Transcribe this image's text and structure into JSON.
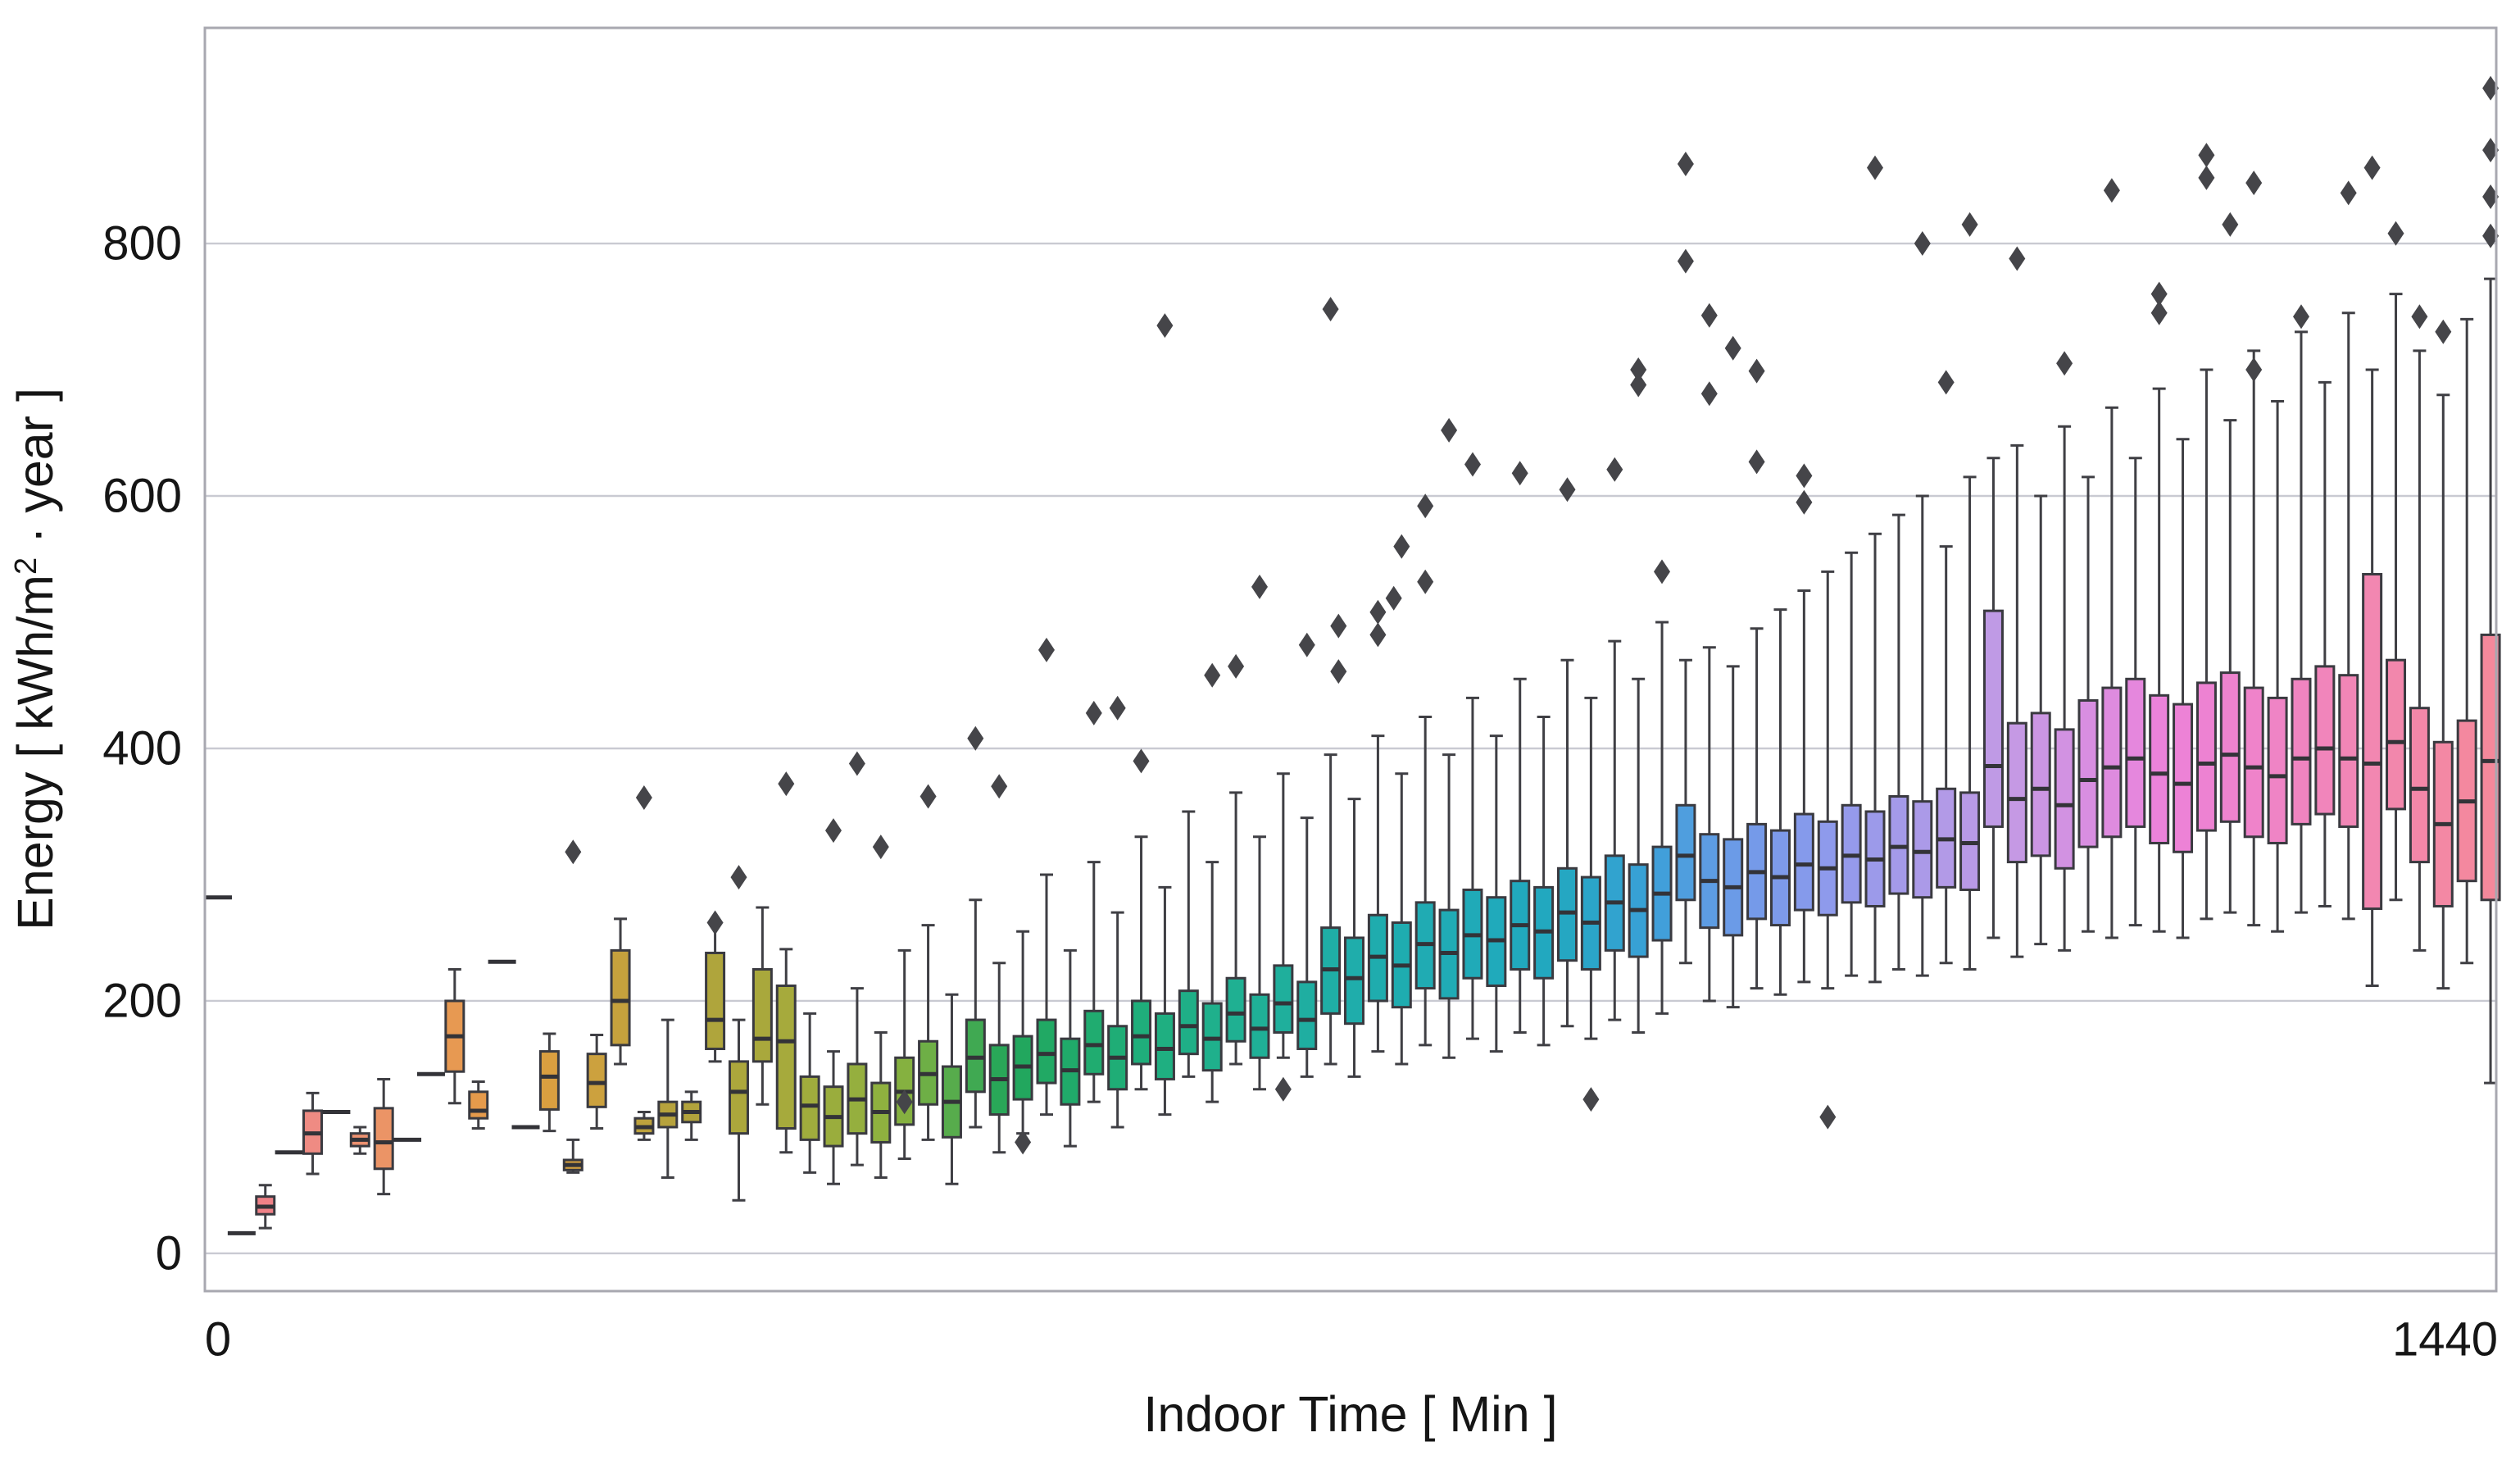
{
  "figure": {
    "background": "#ffffff",
    "x_axis": {
      "label": "Indoor Time [ Min ]",
      "tick_labels": [
        "0",
        "1440"
      ],
      "tick_values": [
        0,
        1440
      ]
    },
    "y_axis": {
      "label_text": "Energy [ kWh/m² · year ]",
      "label_prefix": "Energy [ kWh/m",
      "label_sup": "2",
      "label_suffix": " · year ]",
      "tick_values": [
        0,
        200,
        400,
        600,
        800
      ]
    }
  },
  "chart_data": {
    "type": "boxplot",
    "orientation": "vertical",
    "title": "",
    "xlabel": "Indoor Time [ Min ]",
    "ylabel": "Energy [ kWh/m² · year ]",
    "x_unit": "minutes",
    "bin_interval_min": 15,
    "xlim": [
      -8.3,
      1443.6
    ],
    "ylim": [
      -29.9,
      970.8
    ],
    "x_ticks": [
      0,
      1440
    ],
    "y_ticks": [
      0,
      200,
      400,
      600,
      800
    ],
    "grid": "horizontal-only",
    "colors": {
      "edge": "#3a3a40",
      "median": "#333338",
      "whisker": "#3f3f44",
      "outlier": "#454549",
      "grid": "#c9cad2",
      "spine": "#a8a8b0",
      "background": "#ffffff",
      "text": "#151515"
    },
    "palette_stops": [
      [
        0.0,
        "#f0788a"
      ],
      [
        0.04,
        "#ef8a84"
      ],
      [
        0.08,
        "#ea9660"
      ],
      [
        0.115,
        "#e59a4b"
      ],
      [
        0.15,
        "#d8a03f"
      ],
      [
        0.2,
        "#b4a23c"
      ],
      [
        0.25,
        "#a6aa3c"
      ],
      [
        0.3,
        "#8ab23f"
      ],
      [
        0.347,
        "#22a65a"
      ],
      [
        0.4,
        "#1fae78"
      ],
      [
        0.45,
        "#1fb093"
      ],
      [
        0.5,
        "#1fadab"
      ],
      [
        0.56,
        "#20aaba"
      ],
      [
        0.59,
        "#23a8c0"
      ],
      [
        0.63,
        "#3aa0d8"
      ],
      [
        0.67,
        "#6f9ae8"
      ],
      [
        0.71,
        "#8f9aec"
      ],
      [
        0.75,
        "#ab9ae8"
      ],
      [
        0.79,
        "#c49ae4"
      ],
      [
        0.83,
        "#dc8ce0"
      ],
      [
        0.855,
        "#ec82da"
      ],
      [
        0.9,
        "#ef83c8"
      ],
      [
        0.95,
        "#f287b0"
      ],
      [
        1.0,
        "#f4889b"
      ]
    ],
    "box_schema": [
      "t_min",
      "whisker_low",
      "q1",
      "median",
      "q3",
      "whisker_high"
    ],
    "boxes": [
      [
        0,
        282,
        282,
        282,
        282,
        282
      ],
      [
        15,
        16,
        16,
        16,
        16,
        16
      ],
      [
        30,
        20,
        31,
        37,
        45,
        54
      ],
      [
        45,
        80,
        80,
        80,
        80,
        80
      ],
      [
        60,
        63,
        79,
        95,
        113,
        127
      ],
      [
        75,
        112,
        112,
        112,
        112,
        112
      ],
      [
        90,
        79,
        85,
        90,
        95,
        100
      ],
      [
        105,
        47,
        67,
        88,
        115,
        138
      ],
      [
        120,
        90,
        90,
        90,
        90,
        90
      ],
      [
        135,
        142,
        142,
        142,
        142,
        142
      ],
      [
        150,
        119,
        144,
        172,
        200,
        225
      ],
      [
        165,
        99,
        107,
        113,
        128,
        136
      ],
      [
        180,
        231,
        231,
        231,
        231,
        231
      ],
      [
        195,
        100,
        100,
        100,
        100,
        100
      ],
      [
        210,
        97,
        114,
        140,
        160,
        174
      ],
      [
        225,
        64,
        66,
        70,
        74,
        90
      ],
      [
        240,
        99,
        116,
        135,
        158,
        173
      ],
      [
        255,
        150,
        165,
        200,
        240,
        265
      ],
      [
        270,
        90,
        95,
        100,
        107,
        112
      ],
      [
        285,
        60,
        100,
        110,
        120,
        185
      ],
      [
        300,
        90,
        104,
        112,
        120,
        128
      ],
      [
        315,
        152,
        162,
        185,
        238,
        262
      ],
      [
        330,
        42,
        95,
        128,
        152,
        185
      ],
      [
        345,
        118,
        152,
        170,
        225,
        274
      ],
      [
        360,
        80,
        99,
        168,
        212,
        241
      ],
      [
        375,
        64,
        90,
        117,
        140,
        190
      ],
      [
        390,
        55,
        85,
        108,
        132,
        160
      ],
      [
        405,
        70,
        95,
        122,
        150,
        210
      ],
      [
        420,
        60,
        88,
        112,
        135,
        175
      ],
      [
        435,
        75,
        102,
        128,
        155,
        240
      ],
      [
        450,
        90,
        118,
        142,
        168,
        260
      ],
      [
        465,
        55,
        92,
        120,
        148,
        205
      ],
      [
        480,
        100,
        128,
        155,
        185,
        280
      ],
      [
        495,
        80,
        110,
        138,
        165,
        230
      ],
      [
        510,
        95,
        122,
        148,
        172,
        255
      ],
      [
        525,
        110,
        135,
        158,
        185,
        300
      ],
      [
        540,
        85,
        118,
        145,
        170,
        240
      ],
      [
        555,
        120,
        142,
        165,
        192,
        310
      ],
      [
        570,
        100,
        130,
        155,
        180,
        270
      ],
      [
        585,
        130,
        150,
        172,
        200,
        330
      ],
      [
        600,
        110,
        138,
        162,
        190,
        290
      ],
      [
        615,
        140,
        158,
        180,
        208,
        350
      ],
      [
        630,
        120,
        145,
        170,
        198,
        310
      ],
      [
        645,
        150,
        168,
        190,
        218,
        365
      ],
      [
        660,
        130,
        155,
        178,
        205,
        330
      ],
      [
        675,
        155,
        175,
        198,
        228,
        380
      ],
      [
        690,
        140,
        162,
        185,
        215,
        345
      ],
      [
        705,
        150,
        190,
        225,
        258,
        395
      ],
      [
        720,
        140,
        182,
        218,
        250,
        360
      ],
      [
        735,
        160,
        200,
        235,
        268,
        410
      ],
      [
        750,
        150,
        195,
        228,
        262,
        380
      ],
      [
        765,
        165,
        210,
        245,
        278,
        425
      ],
      [
        780,
        155,
        202,
        238,
        272,
        395
      ],
      [
        795,
        170,
        218,
        252,
        288,
        440
      ],
      [
        810,
        160,
        212,
        248,
        282,
        410
      ],
      [
        825,
        175,
        225,
        260,
        295,
        455
      ],
      [
        840,
        165,
        218,
        255,
        290,
        425
      ],
      [
        855,
        180,
        232,
        270,
        305,
        470
      ],
      [
        870,
        170,
        225,
        262,
        298,
        440
      ],
      [
        885,
        185,
        240,
        278,
        315,
        485
      ],
      [
        900,
        175,
        235,
        272,
        308,
        455
      ],
      [
        915,
        190,
        248,
        285,
        322,
        500
      ],
      [
        930,
        230,
        280,
        315,
        355,
        470
      ],
      [
        945,
        200,
        258,
        295,
        332,
        480
      ],
      [
        960,
        195,
        252,
        290,
        328,
        465
      ],
      [
        975,
        210,
        265,
        302,
        340,
        495
      ],
      [
        990,
        205,
        260,
        298,
        335,
        510
      ],
      [
        1005,
        215,
        272,
        308,
        348,
        525
      ],
      [
        1020,
        210,
        268,
        305,
        342,
        540
      ],
      [
        1035,
        220,
        278,
        315,
        355,
        555
      ],
      [
        1050,
        215,
        275,
        312,
        350,
        570
      ],
      [
        1065,
        225,
        285,
        322,
        362,
        585
      ],
      [
        1080,
        220,
        282,
        318,
        358,
        600
      ],
      [
        1095,
        230,
        290,
        328,
        368,
        560
      ],
      [
        1110,
        225,
        288,
        325,
        365,
        615
      ],
      [
        1125,
        250,
        338,
        386,
        509,
        630
      ],
      [
        1140,
        235,
        310,
        360,
        420,
        640
      ],
      [
        1155,
        245,
        315,
        368,
        428,
        600
      ],
      [
        1170,
        240,
        305,
        355,
        415,
        655
      ],
      [
        1185,
        255,
        322,
        375,
        438,
        615
      ],
      [
        1200,
        250,
        330,
        385,
        448,
        670
      ],
      [
        1215,
        260,
        338,
        392,
        455,
        630
      ],
      [
        1230,
        255,
        325,
        380,
        442,
        685
      ],
      [
        1245,
        250,
        318,
        372,
        435,
        645
      ],
      [
        1260,
        265,
        335,
        388,
        452,
        700
      ],
      [
        1275,
        270,
        342,
        395,
        460,
        660
      ],
      [
        1290,
        260,
        330,
        385,
        448,
        715
      ],
      [
        1305,
        255,
        325,
        378,
        440,
        675
      ],
      [
        1320,
        270,
        340,
        392,
        455,
        730
      ],
      [
        1335,
        275,
        348,
        400,
        465,
        690
      ],
      [
        1350,
        265,
        338,
        392,
        458,
        745
      ],
      [
        1365,
        212,
        273,
        388,
        538,
        700
      ],
      [
        1380,
        280,
        352,
        405,
        470,
        760
      ],
      [
        1395,
        240,
        310,
        368,
        432,
        715
      ],
      [
        1410,
        210,
        275,
        340,
        405,
        680
      ],
      [
        1425,
        230,
        295,
        358,
        422,
        740
      ],
      [
        1440,
        135,
        280,
        390,
        490,
        772
      ]
    ],
    "outlier_schema": [
      "t_min",
      "value"
    ],
    "outliers": [
      [
        225,
        318
      ],
      [
        270,
        361
      ],
      [
        315,
        262
      ],
      [
        330,
        298
      ],
      [
        360,
        372
      ],
      [
        390,
        335
      ],
      [
        405,
        388
      ],
      [
        420,
        322
      ],
      [
        435,
        120
      ],
      [
        450,
        362
      ],
      [
        480,
        408
      ],
      [
        495,
        370
      ],
      [
        510,
        88
      ],
      [
        525,
        478
      ],
      [
        555,
        428
      ],
      [
        570,
        432
      ],
      [
        585,
        390
      ],
      [
        600,
        735
      ],
      [
        630,
        458
      ],
      [
        645,
        465
      ],
      [
        660,
        528
      ],
      [
        675,
        130
      ],
      [
        690,
        482
      ],
      [
        705,
        748
      ],
      [
        710,
        497
      ],
      [
        710,
        461
      ],
      [
        735,
        490
      ],
      [
        735,
        508
      ],
      [
        745,
        519
      ],
      [
        750,
        560
      ],
      [
        765,
        592
      ],
      [
        765,
        532
      ],
      [
        780,
        652
      ],
      [
        795,
        625
      ],
      [
        825,
        618
      ],
      [
        855,
        605
      ],
      [
        870,
        122
      ],
      [
        885,
        621
      ],
      [
        900,
        700
      ],
      [
        900,
        688
      ],
      [
        915,
        540
      ],
      [
        930,
        863
      ],
      [
        930,
        786
      ],
      [
        945,
        743
      ],
      [
        945,
        681
      ],
      [
        960,
        717
      ],
      [
        975,
        699
      ],
      [
        975,
        627
      ],
      [
        1005,
        616
      ],
      [
        1005,
        595
      ],
      [
        1020,
        108
      ],
      [
        1050,
        860
      ],
      [
        1080,
        800
      ],
      [
        1095,
        690
      ],
      [
        1110,
        815
      ],
      [
        1140,
        788
      ],
      [
        1170,
        705
      ],
      [
        1200,
        842
      ],
      [
        1230,
        760
      ],
      [
        1230,
        745
      ],
      [
        1260,
        870
      ],
      [
        1260,
        852
      ],
      [
        1275,
        815
      ],
      [
        1290,
        848
      ],
      [
        1290,
        700
      ],
      [
        1320,
        742
      ],
      [
        1350,
        840
      ],
      [
        1365,
        860
      ],
      [
        1380,
        808
      ],
      [
        1395,
        742
      ],
      [
        1410,
        730
      ],
      [
        1440,
        923
      ],
      [
        1440,
        874
      ],
      [
        1440,
        837
      ],
      [
        1440,
        806
      ]
    ]
  }
}
